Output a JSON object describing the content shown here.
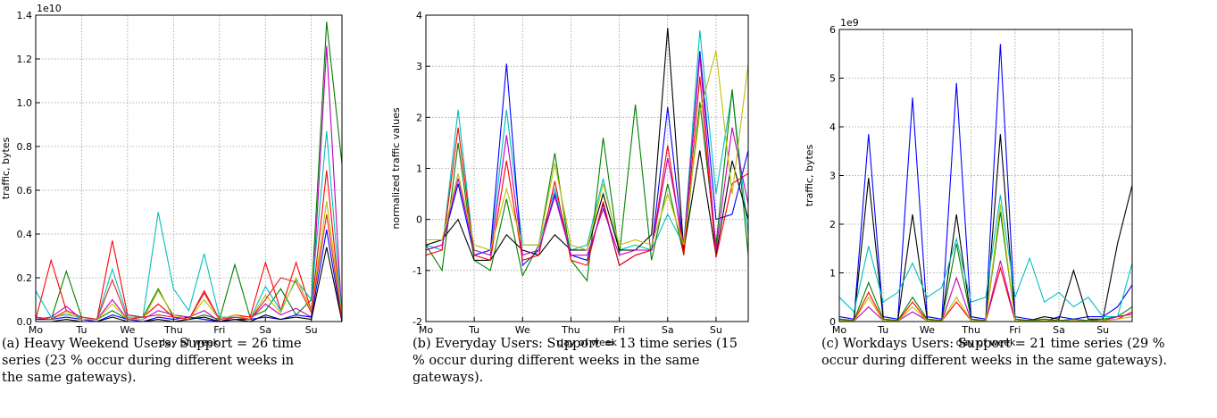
{
  "chart_data": [
    {
      "type": "line",
      "y_label": "traffic, bytes",
      "x_label": "day of week",
      "offset_text": "1e10",
      "caption": "(a) Heavy Weekend Users: Support = 26 time series (23 % occur during different weeks in the same gateways).",
      "grid": true,
      "x": [
        0,
        8,
        16,
        24,
        32,
        40,
        48,
        56,
        64,
        72,
        80,
        88,
        96,
        104,
        112,
        120,
        128,
        136,
        144,
        152,
        160
      ],
      "xlim": [
        0,
        160
      ],
      "xticks": [
        {
          "value": 0,
          "label": "Mo"
        },
        {
          "value": 24,
          "label": "Tu"
        },
        {
          "value": 48,
          "label": "We"
        },
        {
          "value": 72,
          "label": "Thu"
        },
        {
          "value": 96,
          "label": "Fri"
        },
        {
          "value": 120,
          "label": "Sa"
        },
        {
          "value": 144,
          "label": "Su"
        }
      ],
      "ylim": [
        0,
        1.4
      ],
      "yticks": [
        {
          "value": 0,
          "label": "0.0"
        },
        0.2,
        0.4,
        0.6,
        0.8,
        {
          "value": 1,
          "label": "1.0"
        },
        1.2,
        1.4
      ],
      "series": [
        {
          "color": "#008000",
          "values": [
            0.02,
            0.01,
            0.23,
            0.02,
            0.01,
            0.05,
            0.01,
            0.02,
            0.15,
            0.02,
            0.01,
            0.03,
            0.01,
            0.26,
            0.02,
            0.05,
            0.15,
            0.03,
            0.1,
            1.37,
            0.72
          ]
        },
        {
          "color": "#ff0000",
          "values": [
            0.01,
            0.28,
            0.05,
            0.02,
            0.01,
            0.37,
            0.03,
            0.02,
            0.08,
            0.02,
            0.01,
            0.14,
            0.01,
            0.03,
            0.02,
            0.27,
            0.05,
            0.27,
            0.05,
            0.69,
            0
          ]
        },
        {
          "color": "#bf00bf",
          "values": [
            0.01,
            0.02,
            0.07,
            0.01,
            0.01,
            0.1,
            0.01,
            0.01,
            0.05,
            0.03,
            0.02,
            0.05,
            0,
            0.02,
            0.01,
            0.08,
            0.03,
            0.06,
            0.02,
            1.26,
            0.01
          ]
        },
        {
          "color": "#00bfbf",
          "values": [
            0.14,
            0.02,
            0.03,
            0.02,
            0.01,
            0.24,
            0.02,
            0.02,
            0.5,
            0.15,
            0.05,
            0.31,
            0.02,
            0.02,
            0.01,
            0.16,
            0.05,
            0.19,
            0.1,
            0.87,
            0.02
          ]
        },
        {
          "color": "#0000ff",
          "values": [
            0.01,
            0.01,
            0.02,
            0.01,
            0,
            0.03,
            0.01,
            0,
            0.02,
            0.01,
            0.02,
            0.01,
            0,
            0.01,
            0.01,
            0.02,
            0.01,
            0.03,
            0.02,
            0.42,
            0
          ]
        },
        {
          "color": "#bfbf00",
          "values": [
            0.02,
            0.01,
            0.04,
            0.01,
            0.01,
            0.08,
            0.01,
            0.01,
            0.14,
            0.03,
            0.01,
            0.1,
            0.01,
            0.03,
            0.01,
            0.12,
            0.04,
            0.2,
            0.05,
            0.55,
            0.03
          ]
        },
        {
          "color": "#000000",
          "values": [
            0,
            0,
            0.01,
            0,
            0,
            0.02,
            0,
            0,
            0.01,
            0,
            0.01,
            0.02,
            0,
            0.01,
            0,
            0.03,
            0.01,
            0.02,
            0.01,
            0.34,
            0
          ]
        },
        {
          "color": "#e8202a",
          "values": [
            0.02,
            0.01,
            0.05,
            0.02,
            0.01,
            0.19,
            0.01,
            0.02,
            0.03,
            0.02,
            0.01,
            0.13,
            0.01,
            0.02,
            0.01,
            0.1,
            0.2,
            0.18,
            0.04,
            0.49,
            0.01
          ]
        }
      ]
    },
    {
      "type": "line",
      "y_label": "normalized traffic values",
      "x_label": "day of week",
      "caption": "(b) Everyday Users: Support = 13 time series (15 % occur during different weeks in the same gateways).",
      "grid": true,
      "x": [
        0,
        8,
        16,
        24,
        32,
        40,
        48,
        56,
        64,
        72,
        80,
        88,
        96,
        104,
        112,
        120,
        128,
        136,
        144,
        152,
        160
      ],
      "xlim": [
        0,
        160
      ],
      "xticks": [
        {
          "value": 0,
          "label": "Mo"
        },
        {
          "value": 24,
          "label": "Tu"
        },
        {
          "value": 48,
          "label": "We"
        },
        {
          "value": 72,
          "label": "Thu"
        },
        {
          "value": 96,
          "label": "Fri"
        },
        {
          "value": 120,
          "label": "Sa"
        },
        {
          "value": 144,
          "label": "Su"
        }
      ],
      "ylim": [
        -2,
        4
      ],
      "yticks": [
        -2,
        -1,
        0,
        1,
        2,
        3,
        4
      ],
      "series": [
        {
          "color": "#00bfbf",
          "values": [
            -0.5,
            -0.6,
            2.15,
            -0.7,
            -0.6,
            2.15,
            -0.5,
            -0.5,
            0.6,
            -0.6,
            -0.5,
            0.8,
            -0.6,
            -0.5,
            -0.6,
            0.1,
            -0.5,
            3.7,
            0.5,
            2.5,
            -0.3
          ]
        },
        {
          "color": "#0000ff",
          "values": [
            -0.6,
            -0.5,
            0.7,
            -0.7,
            -0.6,
            3.05,
            -0.9,
            -0.6,
            0.5,
            -0.7,
            -0.8,
            0.3,
            -0.9,
            -0.7,
            -0.6,
            2.2,
            -0.6,
            3.3,
            0,
            0.1,
            1.35
          ]
        },
        {
          "color": "#008000",
          "values": [
            -0.5,
            -1,
            1.5,
            -0.8,
            -1,
            0.4,
            -1.1,
            -0.5,
            1.3,
            -0.8,
            -1.2,
            1.6,
            -0.7,
            2.25,
            -0.8,
            0.7,
            -0.7,
            2.3,
            -0.5,
            2.55,
            -0.7
          ]
        },
        {
          "color": "#000000",
          "values": [
            -0.5,
            -0.4,
            0,
            -0.8,
            -0.8,
            -0.3,
            -0.6,
            -0.7,
            -0.3,
            -0.6,
            -0.6,
            0.5,
            -0.6,
            -0.6,
            -0.3,
            3.75,
            -0.6,
            1.35,
            -0.7,
            1.15,
            0
          ]
        },
        {
          "color": "#ff0000",
          "values": [
            -0.7,
            -0.6,
            1.8,
            -0.7,
            -0.8,
            1.15,
            -0.8,
            -0.7,
            0.75,
            -0.8,
            -0.9,
            0.35,
            -0.9,
            -0.7,
            -0.6,
            1.45,
            -0.7,
            2.8,
            -0.75,
            0.7,
            0.9
          ]
        },
        {
          "color": "#bf00bf",
          "values": [
            -0.6,
            -0.5,
            0.8,
            -0.6,
            -0.7,
            1.65,
            -0.7,
            -0.6,
            0.45,
            -0.7,
            -0.7,
            0.2,
            -0.7,
            -0.6,
            -0.6,
            1.2,
            -0.5,
            3.2,
            -0.6,
            1.8,
            0.3
          ]
        },
        {
          "color": "#bfbf00",
          "values": [
            -0.4,
            -0.4,
            0.9,
            -0.5,
            -0.6,
            0.6,
            -0.5,
            -0.5,
            1.1,
            -0.5,
            -0.6,
            0.7,
            -0.5,
            -0.4,
            -0.5,
            0.5,
            -0.5,
            2.1,
            3.3,
            0.5,
            3.05
          ]
        }
      ]
    },
    {
      "type": "line",
      "y_label": "traffic, bytes",
      "x_label": "day of week",
      "offset_text": "1e9",
      "caption": "(c) Workdays Users: Support = 21 time series (29 % occur during different weeks in the same gateways).",
      "grid": true,
      "x": [
        0,
        8,
        16,
        24,
        32,
        40,
        48,
        56,
        64,
        72,
        80,
        88,
        96,
        104,
        112,
        120,
        128,
        136,
        144,
        152,
        160
      ],
      "xlim": [
        0,
        160
      ],
      "xticks": [
        {
          "value": 0,
          "label": "Mo"
        },
        {
          "value": 24,
          "label": "Tu"
        },
        {
          "value": 48,
          "label": "We"
        },
        {
          "value": 72,
          "label": "Thu"
        },
        {
          "value": 96,
          "label": "Fri"
        },
        {
          "value": 120,
          "label": "Sa"
        },
        {
          "value": 144,
          "label": "Su"
        }
      ],
      "ylim": [
        0,
        6
      ],
      "yticks": [
        0,
        1,
        2,
        3,
        4,
        5,
        6
      ],
      "series": [
        {
          "color": "#0000ff",
          "values": [
            0.1,
            0.05,
            3.85,
            0.1,
            0.05,
            4.6,
            0.1,
            0.05,
            4.9,
            0.1,
            0.05,
            5.7,
            0.1,
            0.05,
            0,
            0.1,
            0.05,
            0.1,
            0.1,
            0.3,
            0.75
          ]
        },
        {
          "color": "#000000",
          "values": [
            0.05,
            0.02,
            2.95,
            0.05,
            0.02,
            2.2,
            0.05,
            0.02,
            2.2,
            0.05,
            0.02,
            3.85,
            0.05,
            0.02,
            0.1,
            0.05,
            1.05,
            0.05,
            0.05,
            1.6,
            2.8
          ]
        },
        {
          "color": "#00bfbf",
          "values": [
            0.5,
            0.2,
            1.55,
            0.4,
            0.6,
            1.2,
            0.5,
            0.7,
            1.7,
            0.4,
            0.5,
            2.6,
            0.5,
            1.3,
            0.4,
            0.6,
            0.3,
            0.5,
            0.1,
            0.1,
            1.2
          ]
        },
        {
          "color": "#008000",
          "values": [
            0.05,
            0.02,
            0.8,
            0.05,
            0.02,
            0.5,
            0.05,
            0.02,
            1.6,
            0.05,
            0.02,
            2.25,
            0.05,
            0.02,
            0.05,
            0.02,
            0.05,
            0.02,
            0.05,
            0.1,
            0.3
          ]
        },
        {
          "color": "#ff0000",
          "values": [
            0.02,
            0.01,
            0.6,
            0.02,
            0.01,
            0.4,
            0.02,
            0.01,
            0.4,
            0.02,
            0.01,
            1.1,
            0.02,
            0.01,
            0.02,
            0.01,
            0.02,
            0.01,
            0.02,
            0.05,
            0.2
          ]
        },
        {
          "color": "#bf00bf",
          "values": [
            0.02,
            0.01,
            0.3,
            0.02,
            0.01,
            0.2,
            0.02,
            0.01,
            0.9,
            0.02,
            0.01,
            1.25,
            0.02,
            0.01,
            0.02,
            0.01,
            0.02,
            0.01,
            0.02,
            0.1,
            0.15
          ]
        },
        {
          "color": "#bfbf00",
          "values": [
            0.02,
            0.01,
            0.5,
            0.02,
            0.01,
            0.3,
            0.02,
            0.01,
            0.5,
            0.02,
            0.01,
            2.4,
            0.02,
            0.01,
            0.02,
            0.01,
            0.02,
            0.01,
            0.02,
            0.05,
            0.1
          ]
        }
      ]
    }
  ]
}
